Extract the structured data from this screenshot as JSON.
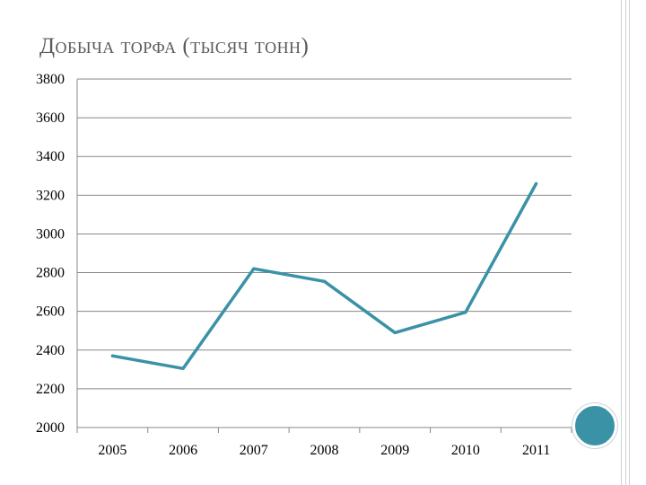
{
  "slide": {
    "title": "Добыча торфа (тысяч тонн)"
  },
  "colors": {
    "line": "#3a92a6",
    "grid": "#888888",
    "accent_circle": "#3a92a6",
    "frame": "#cfd4d8"
  },
  "chart_data": {
    "type": "line",
    "title": "Добыча торфа (тысяч тонн)",
    "xlabel": "",
    "ylabel": "",
    "categories": [
      "2005",
      "2006",
      "2007",
      "2008",
      "2009",
      "2010",
      "2011"
    ],
    "series": [
      {
        "values": [
          2370,
          2305,
          2820,
          2755,
          2490,
          2595,
          3260
        ]
      }
    ],
    "ylim": [
      2000,
      3800
    ],
    "yticks": [
      2000,
      2200,
      2400,
      2600,
      2800,
      3000,
      3200,
      3400,
      3600,
      3800
    ],
    "grid": true,
    "legend": "none"
  }
}
